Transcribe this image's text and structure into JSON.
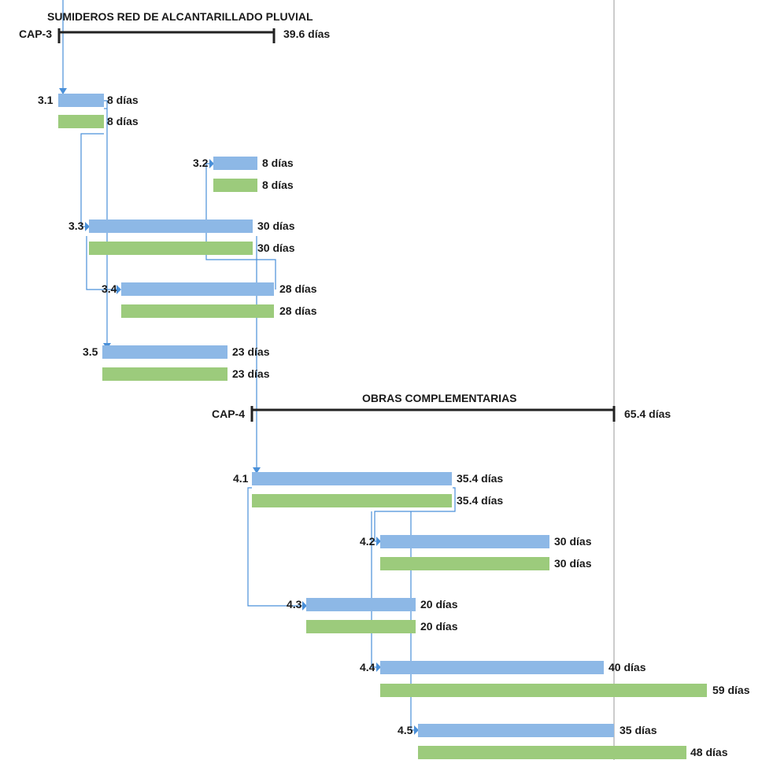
{
  "colors": {
    "planned": "#8db8e6",
    "actual": "#9ccb7c",
    "link": "#4a90d9",
    "summary": "#222222",
    "status_line": "#999999"
  },
  "summaries": [
    {
      "id": "CAP-3",
      "title": "SUMIDEROS RED DE ALCANTARILLADO PLUVIAL",
      "duration": "39.6 días"
    },
    {
      "id": "CAP-4",
      "title": "OBRAS COMPLEMENTARIAS",
      "duration": "65.4 días"
    }
  ],
  "tasks": [
    {
      "id": "3.1",
      "planned": "8 días",
      "actual": "8 días"
    },
    {
      "id": "3.2",
      "planned": "8 días",
      "actual": "8 días"
    },
    {
      "id": "3.3",
      "planned": "30 días",
      "actual": "30 días"
    },
    {
      "id": "3.4",
      "planned": "28 días",
      "actual": "28 días"
    },
    {
      "id": "3.5",
      "planned": "23 días",
      "actual": "23 días"
    },
    {
      "id": "4.1",
      "planned": "35.4 días",
      "actual": "35.4 días"
    },
    {
      "id": "4.2",
      "planned": "30 días",
      "actual": "30 días"
    },
    {
      "id": "4.3",
      "planned": "20 días",
      "actual": "20 días"
    },
    {
      "id": "4.4",
      "planned": "40 días",
      "actual": "59 días"
    },
    {
      "id": "4.5",
      "planned": "35 días",
      "actual": "48 días"
    }
  ]
}
